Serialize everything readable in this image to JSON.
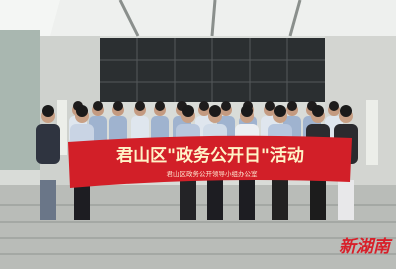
{
  "banner": {
    "title": "君山区\"政务公开日\"活动",
    "subtitle": "君山区政务公开领导小组办公室"
  },
  "watermark": "新湖南"
}
